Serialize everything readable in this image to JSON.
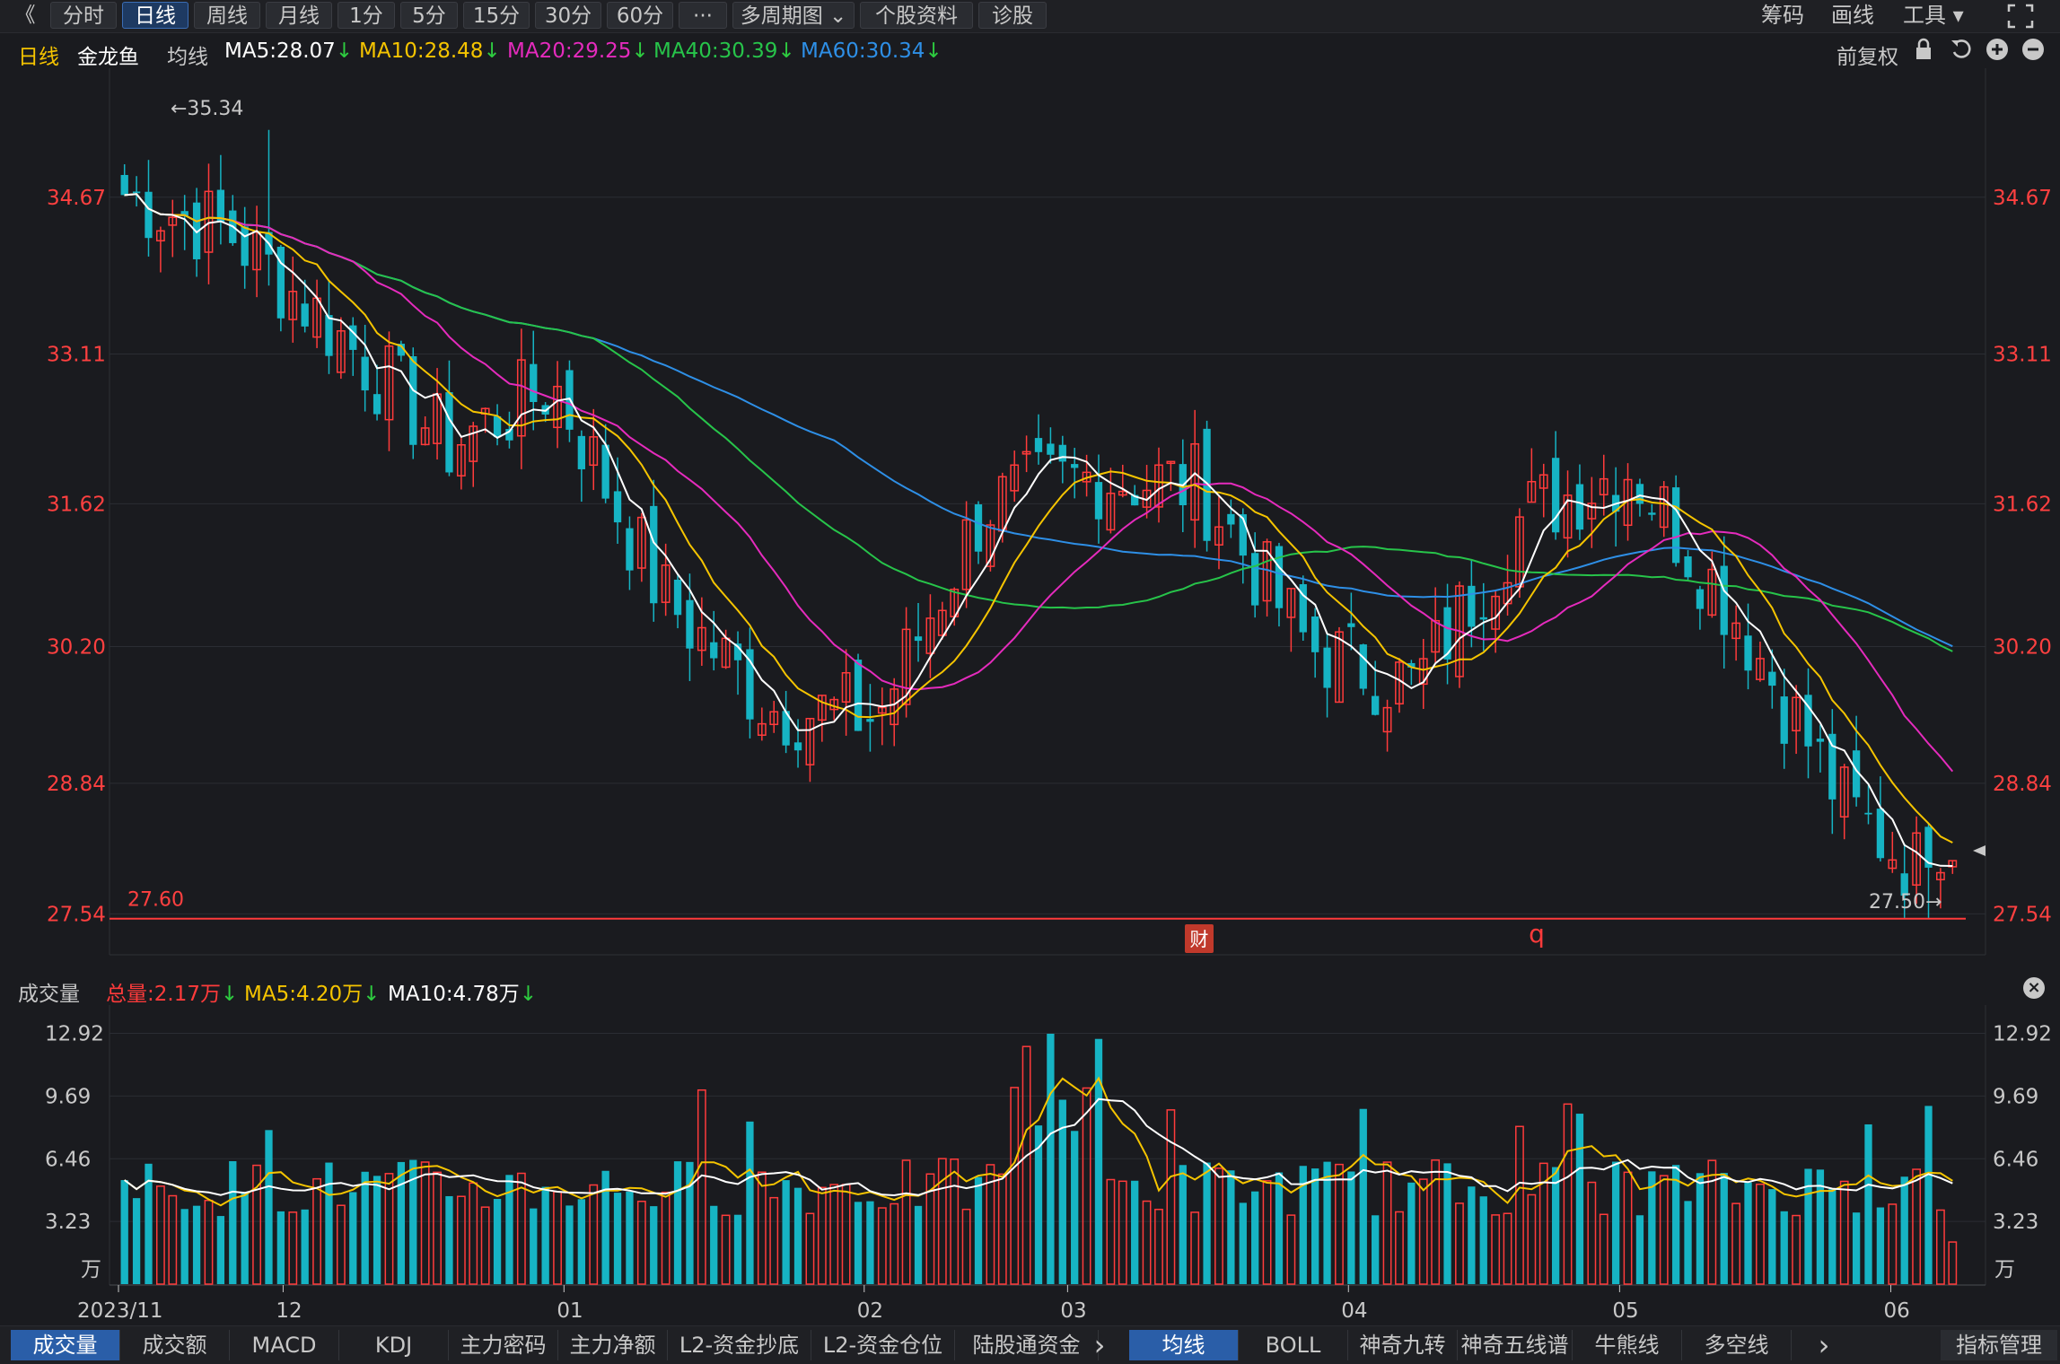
{
  "toolbar": {
    "back_icon": "chevron-left-icon",
    "tabs": [
      "分时",
      "日线",
      "周线",
      "月线",
      "1分",
      "5分",
      "15分",
      "30分",
      "60分",
      "···",
      "多周期图",
      "个股资料",
      "诊股"
    ],
    "active_tab": "日线",
    "right": [
      "筹码",
      "画线",
      "工具"
    ],
    "fullscreen_icon": "fullscreen-icon"
  },
  "info": {
    "period": "日线",
    "stock_name": "金龙鱼",
    "ma_label": "均线",
    "ma5": "MA5:28.07",
    "ma10": "MA10:28.48",
    "ma20": "MA20:29.25",
    "ma40": "MA40:30.39",
    "ma60": "MA60:30.34",
    "restore": "前复权",
    "icons": [
      "lock-icon",
      "undo-icon",
      "zoom-in-icon",
      "zoom-out-icon"
    ]
  },
  "volume_info": {
    "title": "成交量",
    "total": "总量:2.17万",
    "ma5": "MA5:4.20万",
    "ma10": "MA10:4.78万"
  },
  "bottom_tabs_left": [
    "成交量",
    "成交额",
    "MACD",
    "KDJ",
    "主力密码",
    "主力净额",
    "L2-资金抄底",
    "L2-资金仓位",
    "陆股通资金"
  ],
  "bottom_tabs_right": [
    "均线",
    "BOLL",
    "神奇九转",
    "神奇五线谱",
    "牛熊线",
    "多空线"
  ],
  "bottom_active_left": "成交量",
  "bottom_active_right": "均线",
  "bottom_manage": "指标管理",
  "colors": {
    "up": "#ff3b3b",
    "down": "#16b4c4",
    "ma5": "#ffffff",
    "ma10": "#f5c400",
    "ma20": "#e52bbd",
    "ma40": "#27c44a",
    "ma60": "#2e8fe6"
  },
  "chart_data": [
    {
      "type": "candlestick",
      "title": "金龙鱼 日线",
      "price_axis_ticks": [
        "34.67",
        "33.11",
        "31.62",
        "30.20",
        "28.84",
        "27.54"
      ],
      "ylim": [
        27.16,
        35.9
      ],
      "x_ticks": [
        "2023/11",
        "12",
        "01",
        "02",
        "03",
        "04",
        "05",
        "06"
      ],
      "annotations": {
        "high": "←35.34",
        "low": "27.50→",
        "level": "27.60",
        "marker_cai": "财",
        "marker_q": "q"
      },
      "horizontal_line_value": 27.6,
      "key_points": [
        {
          "x": "2023/11",
          "close": 34.7
        },
        {
          "x": "12",
          "close": 34.3
        },
        {
          "x": "12-mid",
          "close": 33.3
        },
        {
          "x": "12-end",
          "close": 32.2
        },
        {
          "x": "01",
          "close": 32.8
        },
        {
          "x": "01-mid",
          "close": 30.7
        },
        {
          "x": "01-late",
          "close": 29.6
        },
        {
          "x": "02",
          "close": 29.5
        },
        {
          "x": "02-mid",
          "close": 31.6
        },
        {
          "x": "03",
          "close": 31.9
        },
        {
          "x": "03-late",
          "close": 31.8
        },
        {
          "x": "04",
          "close": 30.2
        },
        {
          "x": "04-mid",
          "close": 29.8
        },
        {
          "x": "05",
          "close": 31.5
        },
        {
          "x": "05-mid",
          "close": 32.0
        },
        {
          "x": "06",
          "close": 30.5
        },
        {
          "x": "06-mid",
          "close": 28.6
        },
        {
          "x": "06-end",
          "close": 27.7
        }
      ]
    },
    {
      "type": "bar",
      "title": "成交量",
      "unit": "万",
      "y_ticks": [
        "12.92",
        "9.69",
        "6.46",
        "3.23"
      ],
      "ylim": [
        0,
        13.5
      ]
    }
  ]
}
